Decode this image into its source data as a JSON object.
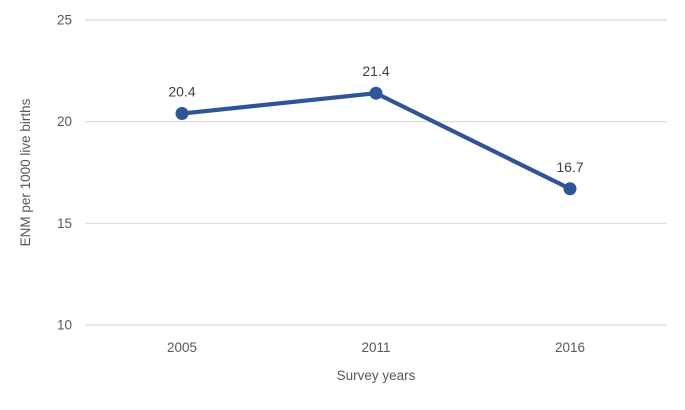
{
  "chart_data": {
    "type": "line",
    "title": "",
    "categories": [
      "2005",
      "2011",
      "2016"
    ],
    "series": [
      {
        "name": "ENM",
        "values": [
          20.4,
          21.4,
          16.7
        ],
        "data_labels": [
          "20.4",
          "21.4",
          "16.7"
        ]
      }
    ],
    "xlabel": "Survey years",
    "ylabel": "ENM per 1000 live births",
    "ylim": [
      10,
      25
    ],
    "yticks": [
      10,
      15,
      20,
      25
    ],
    "ytick_labels": [
      "10",
      "15",
      "20",
      "25"
    ],
    "grid": true,
    "legend": false,
    "colors": {
      "line": "#2F5597",
      "marker": "#2F5597",
      "gridline": "#D9D9D9",
      "axis_line": "#D9D9D9",
      "axis_text": "#595959",
      "data_label": "#404040",
      "background": "#FFFFFF"
    }
  }
}
